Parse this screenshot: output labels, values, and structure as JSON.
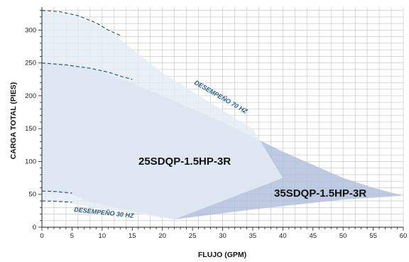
{
  "chart_data": {
    "type": "area",
    "xlabel": "FLUJO (GPM)",
    "ylabel": "CARGA TOTAL (PIES)",
    "xlim": [
      0,
      60
    ],
    "ylim": [
      0,
      335
    ],
    "x_ticks": [
      "0",
      "5",
      "10",
      "15",
      "20",
      "25",
      "30",
      "35",
      "40",
      "45",
      "50",
      "55",
      "60"
    ],
    "y_ticks": [
      "0",
      "50",
      "100",
      "150",
      "200",
      "250",
      "300"
    ],
    "grid": true,
    "colors": {
      "region_light": "#e4ecf5",
      "region_mid": "#c9d5e8",
      "region_dark": "#b3c1dc",
      "curve": "#1f5e8c"
    },
    "series": [
      {
        "name": "25SDQP-1.5HP-3R",
        "outline": [
          [
            0,
            330
          ],
          [
            5,
            322
          ],
          [
            9,
            308
          ],
          [
            12,
            293
          ],
          [
            20,
            235
          ],
          [
            30,
            178
          ],
          [
            35,
            150
          ],
          [
            40,
            75
          ],
          [
            30,
            40
          ],
          [
            22,
            12
          ],
          [
            20,
            14
          ],
          [
            15,
            22
          ],
          [
            10,
            28
          ],
          [
            5,
            36
          ],
          [
            5,
            38
          ],
          [
            0,
            40
          ]
        ]
      },
      {
        "name": "35SDQP-1.5HP-3R",
        "outline": [
          [
            0,
            250
          ],
          [
            5,
            246
          ],
          [
            10,
            236
          ],
          [
            15,
            219
          ],
          [
            20,
            200
          ],
          [
            30,
            160
          ],
          [
            40,
            115
          ],
          [
            45,
            95
          ],
          [
            50,
            75
          ],
          [
            55,
            60
          ],
          [
            60,
            48
          ],
          [
            50,
            42
          ],
          [
            35,
            27
          ],
          [
            22,
            12
          ],
          [
            8,
            38
          ],
          [
            5,
            50
          ],
          [
            0,
            55
          ]
        ]
      }
    ],
    "annotations": [
      "DESEMPEÑO 70 HZ",
      "DESEMPEÑO 30 HZ"
    ],
    "perf_curves": {
      "hz70_upper": [
        [
          0,
          330
        ],
        [
          3,
          328
        ],
        [
          6,
          322
        ],
        [
          9,
          311
        ],
        [
          11,
          300
        ],
        [
          13,
          292
        ]
      ],
      "hz70_lower": [
        [
          0,
          250
        ],
        [
          4,
          247
        ],
        [
          8,
          242
        ],
        [
          11,
          236
        ],
        [
          13,
          230
        ],
        [
          15,
          225
        ]
      ],
      "hz30_upper": [
        [
          0,
          55
        ],
        [
          2,
          54.5
        ],
        [
          5,
          52
        ]
      ],
      "hz30_lower": [
        [
          0,
          40
        ],
        [
          2,
          39.5
        ],
        [
          5,
          38
        ]
      ]
    }
  }
}
